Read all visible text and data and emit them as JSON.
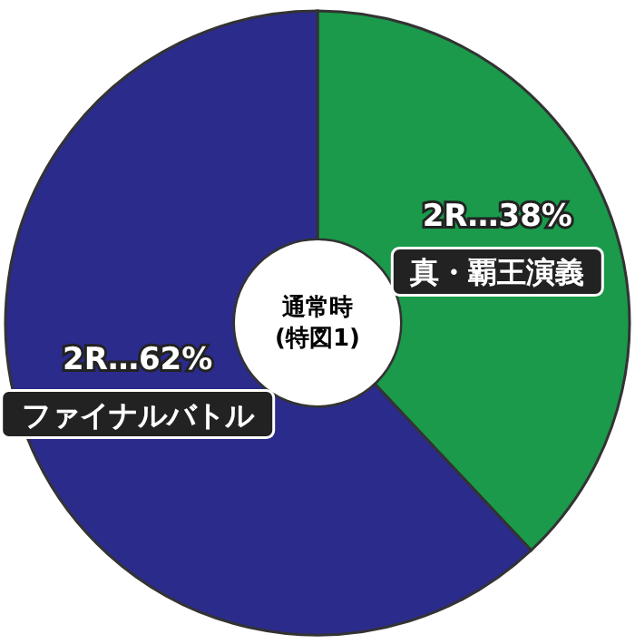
{
  "chart_data": {
    "type": "donut",
    "title": "通常時\n(特図1)",
    "categories": [
      "真・覇王演義",
      "ファイナルバトル"
    ],
    "values": [
      38,
      62
    ],
    "colors": [
      "#1a9a4a",
      "#2b2b8c"
    ],
    "value_labels": [
      "2R…38%",
      "2R…62%"
    ]
  }
}
